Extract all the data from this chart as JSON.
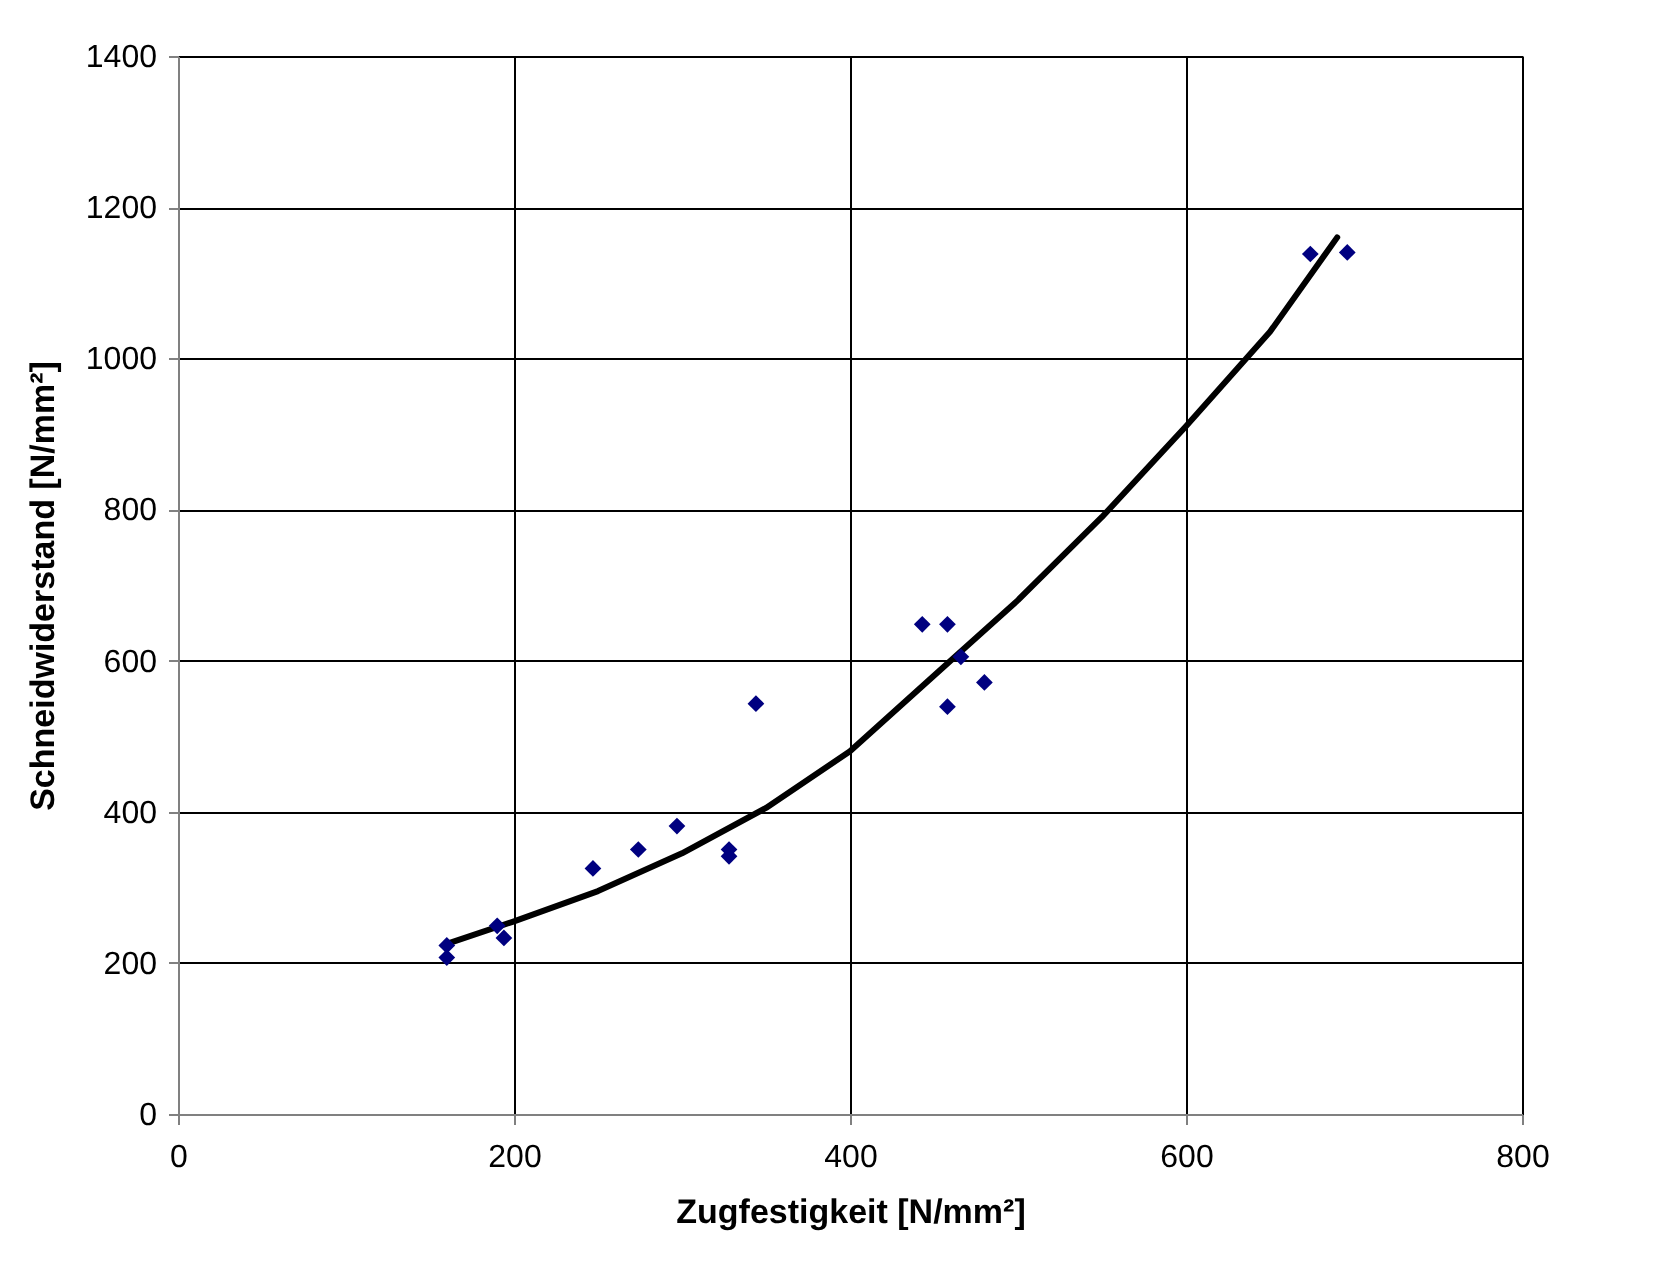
{
  "chart_data": {
    "type": "scatter",
    "xlabel": "Zugfestigkeit [N/mm²]",
    "ylabel": "Schneidwiderstand [N/mm²]",
    "xlim": [
      0,
      800
    ],
    "xticks": [
      0,
      200,
      400,
      600,
      800
    ],
    "ylim": [
      0,
      1400
    ],
    "yticks": [
      0,
      200,
      400,
      600,
      800,
      1000,
      1200,
      1400
    ],
    "grid": true,
    "series": [
      {
        "color": "#000080",
        "marker": "diamond",
        "x": [
          160,
          160,
          190,
          194,
          247,
          274,
          297,
          328,
          328,
          344,
          443,
          458,
          458,
          466,
          480,
          674,
          696
        ],
        "values": [
          223,
          207,
          249,
          233,
          325,
          350,
          381,
          350,
          341,
          543,
          648,
          648,
          539,
          605,
          571,
          1138,
          1140
        ]
      },
      {
        "type": "line",
        "color": "#000000",
        "line_style": "solid",
        "x": [
          160,
          200,
          250,
          300,
          350,
          400,
          460,
          500,
          550,
          600,
          650,
          690
        ],
        "values": [
          225,
          255,
          295,
          345,
          405,
          480,
          600,
          680,
          790,
          910,
          1035,
          1160
        ]
      }
    ]
  }
}
